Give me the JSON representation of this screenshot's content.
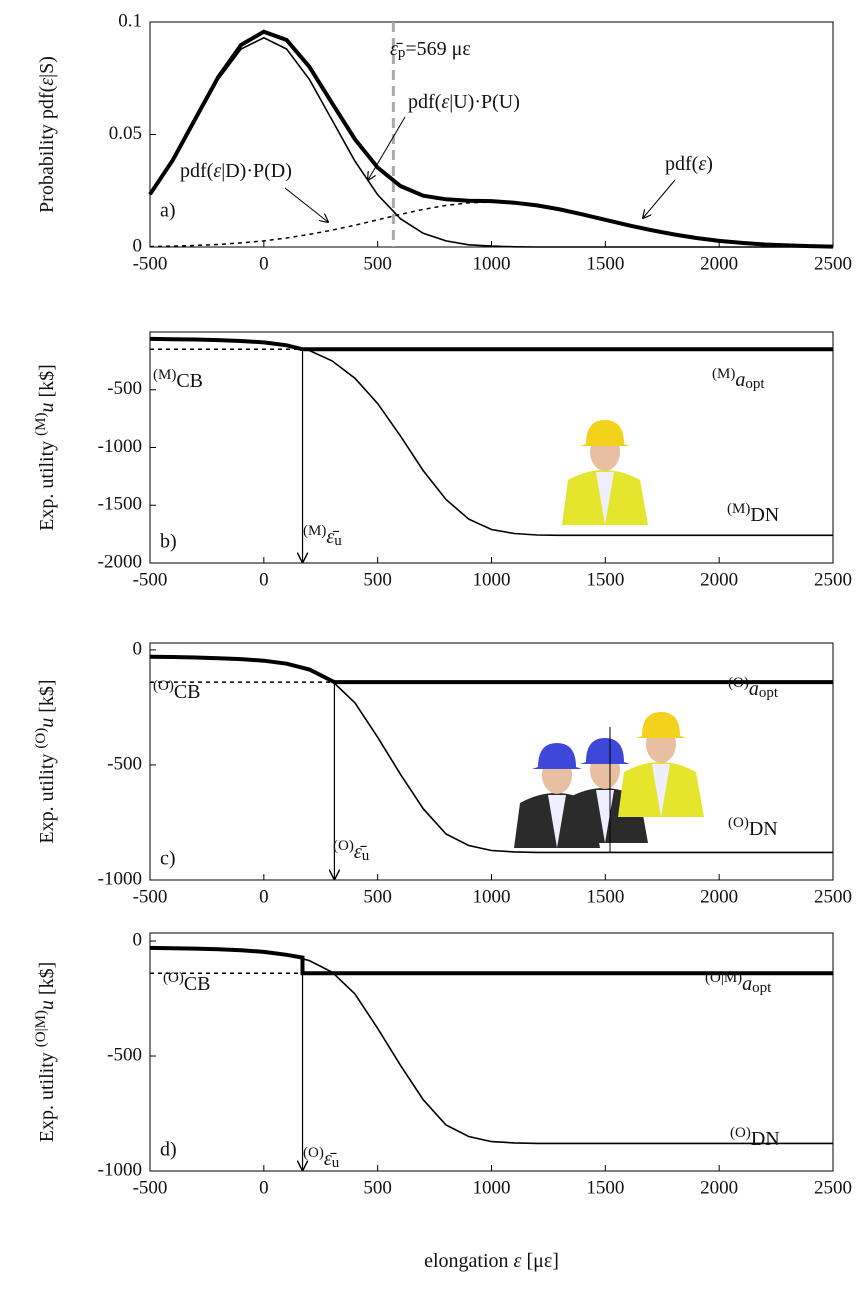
{
  "chart_data": [
    {
      "type": "line",
      "panel": "a)",
      "ylabel": {
        "pre": "Probability pdf(",
        "var": "ε",
        "main": "|S)"
      },
      "xlim": [
        -500,
        2500
      ],
      "xticks": [
        -500,
        0,
        500,
        1000,
        1500,
        2000,
        2500
      ],
      "ylim": [
        0,
        0.1
      ],
      "yticks": [
        0,
        0.05,
        0.1
      ],
      "x": [
        -500,
        -400,
        -300,
        -200,
        -100,
        0,
        100,
        200,
        300,
        400,
        500,
        600,
        700,
        800,
        900,
        1000,
        1100,
        1200,
        1300,
        1400,
        1500,
        1600,
        1700,
        1800,
        1900,
        2000,
        2100,
        2200,
        2300,
        2400,
        2500
      ],
      "series": [
        {
          "name": {
            "pre": "pdf(",
            "var": "ε",
            "main": ")"
          },
          "style": "thick",
          "color": "#000",
          "values": [
            0.0234,
            0.0386,
            0.0571,
            0.0756,
            0.0898,
            0.0957,
            0.092,
            0.0801,
            0.0639,
            0.0479,
            0.0353,
            0.0271,
            0.0228,
            0.0212,
            0.0206,
            0.0204,
            0.0197,
            0.0185,
            0.0167,
            0.0145,
            0.0121,
            0.0097,
            0.0075,
            0.0056,
            0.004,
            0.0027,
            0.0018,
            0.0011,
            0.0007,
            0.0004,
            0.0002
          ]
        },
        {
          "name": {
            "pre": "pdf(",
            "var": "ε",
            "main": "|U)·P(U)"
          },
          "style": "thin",
          "color": "#000",
          "values": [
            0.0232,
            0.0382,
            0.0564,
            0.0745,
            0.088,
            0.093,
            0.088,
            0.0745,
            0.0564,
            0.0382,
            0.0232,
            0.0126,
            0.0061,
            0.0027,
            0.001,
            0.0004,
            0.0001,
            0,
            0,
            0,
            0,
            0,
            0,
            0,
            0,
            0,
            0,
            0,
            0,
            0,
            0
          ]
        },
        {
          "name": {
            "pre": "pdf(",
            "var": "ε",
            "main": "|D)·P(D)"
          },
          "style": "dashed",
          "color": "#000",
          "values": [
            0.0002,
            0.0004,
            0.0007,
            0.0011,
            0.0018,
            0.0027,
            0.004,
            0.0056,
            0.0075,
            0.0097,
            0.0121,
            0.0145,
            0.0167,
            0.0185,
            0.0196,
            0.02,
            0.0196,
            0.0185,
            0.0167,
            0.0145,
            0.0121,
            0.0097,
            0.0075,
            0.0056,
            0.004,
            0.0027,
            0.0018,
            0.0011,
            0.0007,
            0.0004,
            0.0002
          ]
        }
      ],
      "threshold": {
        "value": 569,
        "label": {
          "var": "ε̄",
          "sub": "p",
          "tail": "=569 με"
        }
      }
    },
    {
      "type": "line",
      "panel": "b)",
      "ylabel": {
        "pre": "Exp. utility ",
        "sup": "(M)",
        "var": "u",
        "tail": "  [k$]"
      },
      "xlim": [
        -500,
        2500
      ],
      "xticks": [
        -500,
        0,
        500,
        1000,
        1500,
        2000,
        2500
      ],
      "ylim": [
        -2000,
        0
      ],
      "yticks": [
        -2000,
        -1500,
        -1000,
        -500
      ],
      "series": [
        {
          "name": {
            "sup": "(M)",
            "main": "DN"
          },
          "style": "thin",
          "color": "#000",
          "x": [
            -500,
            -400,
            -300,
            -200,
            -100,
            0,
            100,
            200,
            300,
            400,
            500,
            600,
            700,
            800,
            900,
            1000,
            1100,
            1200,
            1300,
            2500
          ],
          "values": [
            -60,
            -62,
            -65,
            -70,
            -78,
            -90,
            -115,
            -160,
            -250,
            -400,
            -620,
            -900,
            -1200,
            -1450,
            -1620,
            -1710,
            -1745,
            -1758,
            -1760,
            -1760
          ]
        },
        {
          "name": {
            "sup": "(M)",
            "var": "a",
            "sub": "opt"
          },
          "style": "thick",
          "color": "#000",
          "x": [
            -500,
            -400,
            -300,
            -200,
            -100,
            0,
            100,
            170,
            2500
          ],
          "values": [
            -60,
            -62,
            -65,
            -70,
            -78,
            -90,
            -115,
            -150,
            -150
          ]
        },
        {
          "name": {
            "sup": "(M)",
            "main": "CB"
          },
          "style": "dashed",
          "color": "#000",
          "x": [
            -500,
            170
          ],
          "values": [
            -150,
            -150
          ]
        }
      ],
      "threshold": {
        "value": 170,
        "label": {
          "sup": "(M)",
          "var": "ε̄",
          "sub": "u"
        }
      }
    },
    {
      "type": "line",
      "panel": "c)",
      "ylabel": {
        "pre": "Exp. utility ",
        "sup": "(O)",
        "var": "u",
        "tail": "  [k$]"
      },
      "xlim": [
        -500,
        2500
      ],
      "xticks": [
        -500,
        0,
        500,
        1000,
        1500,
        2000,
        2500
      ],
      "ylim": [
        -1000,
        30
      ],
      "yticks": [
        -1000,
        -500,
        0
      ],
      "series": [
        {
          "name": {
            "sup": "(O)",
            "main": "DN"
          },
          "style": "thin",
          "color": "#000",
          "x": [
            -500,
            -400,
            -300,
            -200,
            -100,
            0,
            100,
            200,
            300,
            400,
            500,
            600,
            700,
            800,
            900,
            1000,
            1100,
            1200,
            1300,
            2500
          ],
          "values": [
            -30,
            -31,
            -33,
            -36,
            -40,
            -47,
            -60,
            -85,
            -135,
            -230,
            -380,
            -540,
            -690,
            -800,
            -850,
            -872,
            -878,
            -880,
            -880,
            -880
          ]
        },
        {
          "name": {
            "sup": "(O)",
            "var": "a",
            "sub": "opt"
          },
          "style": "thick",
          "color": "#000",
          "x": [
            -500,
            -400,
            -300,
            -200,
            -100,
            0,
            100,
            200,
            310,
            2500
          ],
          "values": [
            -30,
            -31,
            -33,
            -36,
            -40,
            -47,
            -60,
            -85,
            -140,
            -140
          ]
        },
        {
          "name": {
            "sup": "(O)",
            "main": "CB"
          },
          "style": "dashed",
          "color": "#000",
          "x": [
            -500,
            310
          ],
          "values": [
            -140,
            -140
          ]
        }
      ],
      "threshold": {
        "value": 310,
        "label": {
          "sup": "(O)",
          "var": "ε̄",
          "sub": "u"
        }
      }
    },
    {
      "type": "line",
      "panel": "d)",
      "ylabel": {
        "pre": "Exp. utility ",
        "sup": "(O|M)",
        "var": "u",
        "tail": "  [k$]"
      },
      "xlabel": {
        "pre": "elongation ",
        "var": "ε",
        "tail": " [με]"
      },
      "xlim": [
        -500,
        2500
      ],
      "xticks": [
        -500,
        0,
        500,
        1000,
        1500,
        2000,
        2500
      ],
      "ylim": [
        -1000,
        35
      ],
      "yticks": [
        -1000,
        -500,
        0
      ],
      "series": [
        {
          "name": {
            "sup": "(O)",
            "main": "DN"
          },
          "style": "thin",
          "color": "#000",
          "x": [
            -500,
            -400,
            -300,
            -200,
            -100,
            0,
            100,
            200,
            300,
            400,
            500,
            600,
            700,
            800,
            900,
            1000,
            1100,
            1200,
            1300,
            2500
          ],
          "values": [
            -30,
            -31,
            -33,
            -36,
            -40,
            -47,
            -60,
            -85,
            -135,
            -230,
            -380,
            -540,
            -690,
            -800,
            -850,
            -872,
            -878,
            -880,
            -880,
            -880
          ]
        },
        {
          "name": {
            "sup": "(O|M)",
            "var": "a",
            "sub": "opt"
          },
          "style": "thick",
          "color": "#000",
          "x": [
            -500,
            -400,
            -300,
            -200,
            -100,
            0,
            100,
            170,
            170,
            2500
          ],
          "values": [
            -30,
            -31,
            -33,
            -36,
            -40,
            -47,
            -60,
            -72,
            -140,
            -140
          ]
        },
        {
          "name": {
            "sup": "(O)",
            "main": "CB"
          },
          "style": "dashed",
          "color": "#000",
          "x": [
            -500,
            170
          ],
          "values": [
            -140,
            -140
          ]
        }
      ],
      "threshold": {
        "value": 170,
        "label": {
          "sup": "(O)",
          "var": "ε̄",
          "sub": "u"
        }
      }
    }
  ]
}
